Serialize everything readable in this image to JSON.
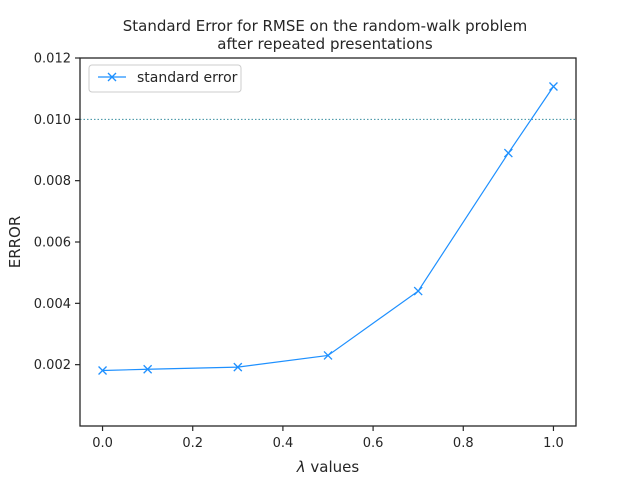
{
  "chart_data": {
    "type": "line",
    "title_line1": "Standard Error for RMSE on the random-walk problem",
    "title_line2": "after repeated presentations",
    "xlabel_symbol": "λ",
    "xlabel_rest": " values",
    "ylabel": "ERROR",
    "xlim": [
      -0.05,
      1.05
    ],
    "ylim": [
      0.0,
      0.012
    ],
    "xticks": [
      0.0,
      0.2,
      0.4,
      0.6,
      0.8,
      1.0
    ],
    "xtick_labels": [
      "0.0",
      "0.2",
      "0.4",
      "0.6",
      "0.8",
      "1.0"
    ],
    "yticks": [
      0.002,
      0.004,
      0.006,
      0.008,
      0.01,
      0.012
    ],
    "ytick_labels": [
      "0.002",
      "0.004",
      "0.006",
      "0.008",
      "0.010",
      "0.012"
    ],
    "reference_line_y": 0.01,
    "legend_position": "upper-left",
    "grid": false,
    "series": [
      {
        "name": "standard error",
        "color": "#1e90ff",
        "marker": "x",
        "x": [
          0.0,
          0.1,
          0.3,
          0.5,
          0.7,
          0.9,
          1.0
        ],
        "y": [
          0.00181,
          0.00185,
          0.00192,
          0.0023,
          0.0044,
          0.0089,
          0.01107
        ]
      }
    ],
    "reference_line_color": "#3a8fa0"
  }
}
